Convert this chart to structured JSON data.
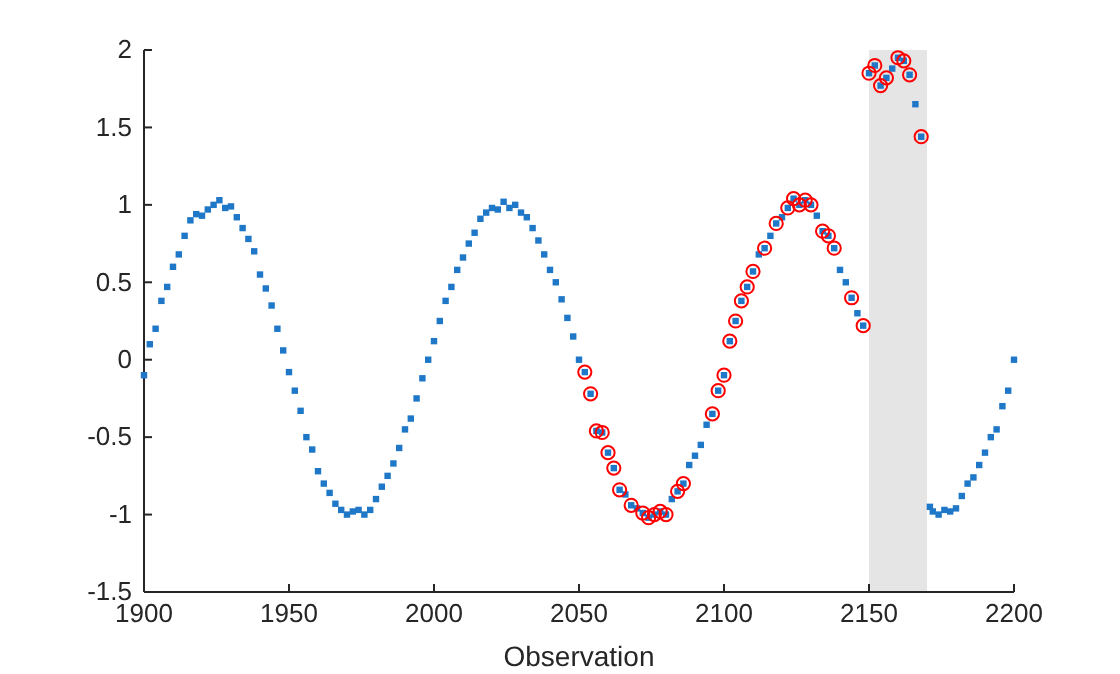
{
  "chart_data": {
    "type": "scatter",
    "xlabel": "Observation",
    "xlim": [
      1900,
      2200
    ],
    "ylim": [
      -1.5,
      2
    ],
    "xticks": [
      1900,
      1950,
      2000,
      2050,
      2100,
      2150,
      2200
    ],
    "yticks": [
      -1.5,
      -1,
      -0.5,
      0,
      0.5,
      1,
      1.5,
      2
    ],
    "grid": false,
    "bands": [
      {
        "axis": "x",
        "from": 2150,
        "to": 2170,
        "color": "#e5e5e5"
      }
    ],
    "series": [
      {
        "color": "#1f77c8",
        "marker": "square",
        "x": [
          1900,
          1902,
          1904,
          1906,
          1908,
          1910,
          1912,
          1914,
          1916,
          1918,
          1920,
          1922,
          1924,
          1926,
          1928,
          1930,
          1932,
          1934,
          1936,
          1938,
          1940,
          1942,
          1944,
          1946,
          1948,
          1950,
          1952,
          1954,
          1956,
          1958,
          1960,
          1962,
          1964,
          1966,
          1968,
          1970,
          1972,
          1974,
          1976,
          1978,
          1980,
          1982,
          1984,
          1986,
          1988,
          1990,
          1992,
          1994,
          1996,
          1998,
          2000,
          2002,
          2004,
          2006,
          2008,
          2010,
          2012,
          2014,
          2016,
          2018,
          2020,
          2022,
          2024,
          2026,
          2028,
          2030,
          2032,
          2034,
          2036,
          2038,
          2040,
          2042,
          2044,
          2046,
          2048,
          2050,
          2052,
          2054,
          2056,
          2058,
          2060,
          2062,
          2064,
          2066,
          2068,
          2070,
          2072,
          2074,
          2076,
          2078,
          2080,
          2082,
          2084,
          2086,
          2088,
          2090,
          2092,
          2094,
          2096,
          2098,
          2100,
          2102,
          2104,
          2106,
          2108,
          2110,
          2112,
          2114,
          2116,
          2118,
          2120,
          2122,
          2124,
          2126,
          2128,
          2130,
          2132,
          2134,
          2136,
          2138,
          2140,
          2142,
          2144,
          2146,
          2148,
          2150,
          2152,
          2154,
          2156,
          2158,
          2160,
          2162,
          2164,
          2166,
          2168,
          2171,
          2172,
          2174,
          2176,
          2178,
          2180,
          2182,
          2184,
          2186,
          2188,
          2190,
          2192,
          2194,
          2196,
          2198,
          2200
        ],
        "values": [
          -0.1,
          0.1,
          0.2,
          0.38,
          0.47,
          0.6,
          0.68,
          0.8,
          0.9,
          0.94,
          0.93,
          0.97,
          1.0,
          1.03,
          0.98,
          0.99,
          0.92,
          0.85,
          0.78,
          0.7,
          0.55,
          0.46,
          0.35,
          0.2,
          0.06,
          -0.08,
          -0.2,
          -0.33,
          -0.5,
          -0.58,
          -0.72,
          -0.8,
          -0.86,
          -0.93,
          -0.97,
          -1.0,
          -0.98,
          -0.97,
          -1.0,
          -0.97,
          -0.9,
          -0.82,
          -0.75,
          -0.67,
          -0.57,
          -0.45,
          -0.38,
          -0.25,
          -0.12,
          0.0,
          0.12,
          0.25,
          0.38,
          0.47,
          0.58,
          0.66,
          0.75,
          0.82,
          0.91,
          0.95,
          0.98,
          0.97,
          1.02,
          0.98,
          1.0,
          0.95,
          0.92,
          0.85,
          0.77,
          0.68,
          0.58,
          0.5,
          0.39,
          0.27,
          0.15,
          0.0,
          -0.08,
          -0.22,
          -0.46,
          -0.47,
          -0.6,
          -0.7,
          -0.84,
          -0.87,
          -0.94,
          -0.96,
          -0.99,
          -1.02,
          -1.0,
          -0.98,
          -1.0,
          -0.9,
          -0.85,
          -0.8,
          -0.68,
          -0.62,
          -0.55,
          -0.42,
          -0.35,
          -0.2,
          -0.1,
          0.12,
          0.25,
          0.38,
          0.47,
          0.57,
          0.68,
          0.72,
          0.8,
          0.88,
          0.92,
          0.98,
          1.04,
          1.0,
          1.03,
          1.0,
          0.93,
          0.83,
          0.8,
          0.72,
          0.58,
          0.5,
          0.4,
          0.3,
          0.22,
          1.85,
          1.9,
          1.77,
          1.82,
          1.88,
          1.95,
          1.93,
          1.84,
          1.65,
          1.44,
          -0.95,
          -0.98,
          -1.0,
          -0.97,
          -0.98,
          -0.96,
          -0.88,
          -0.8,
          -0.76,
          -0.68,
          -0.6,
          -0.5,
          -0.45,
          -0.3,
          -0.2,
          0.0
        ]
      },
      {
        "color": "#ff0000",
        "marker": "circle",
        "x": [
          2052,
          2054,
          2056,
          2058,
          2060,
          2062,
          2064,
          2068,
          2072,
          2074,
          2076,
          2078,
          2080,
          2084,
          2086,
          2096,
          2098,
          2100,
          2102,
          2104,
          2106,
          2108,
          2110,
          2114,
          2118,
          2122,
          2124,
          2126,
          2128,
          2130,
          2134,
          2136,
          2138,
          2144,
          2148,
          2150,
          2152,
          2154,
          2156,
          2160,
          2162,
          2164,
          2168
        ],
        "values": [
          -0.08,
          -0.22,
          -0.46,
          -0.47,
          -0.6,
          -0.7,
          -0.84,
          -0.94,
          -0.99,
          -1.02,
          -1.0,
          -0.98,
          -1.0,
          -0.85,
          -0.8,
          -0.35,
          -0.2,
          -0.1,
          0.12,
          0.25,
          0.38,
          0.47,
          0.57,
          0.72,
          0.88,
          0.98,
          1.04,
          1.0,
          1.03,
          1.0,
          0.83,
          0.8,
          0.72,
          0.4,
          0.22,
          1.85,
          1.9,
          1.77,
          1.82,
          1.95,
          1.93,
          1.84,
          1.44
        ]
      }
    ]
  }
}
